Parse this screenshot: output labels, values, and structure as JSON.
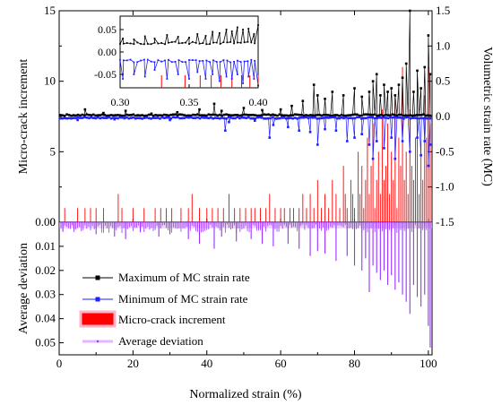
{
  "chart_data": {
    "type": "line",
    "xlabel": "Normalized strain (%)",
    "ylabel_left_top": "Micro-crack increment",
    "ylabel_right_top": "Volumetric strain rate (MC)",
    "ylabel_left_bottom": "Average deviation",
    "x_ticks": [
      "0",
      "20",
      "40",
      "60",
      "80",
      "100"
    ],
    "xlim": [
      0,
      101
    ],
    "top_panel": {
      "left_ylim": [
        0,
        15
      ],
      "left_ticks": [
        "0",
        "5",
        "10",
        "15"
      ],
      "right_ylim": [
        -1.5,
        1.5
      ],
      "right_ticks": [
        "-1.5",
        "-1.0",
        "-0.5",
        "0.0",
        "0.5",
        "1.0",
        "1.5"
      ]
    },
    "bottom_panel": {
      "ylim": [
        0,
        0.055
      ],
      "inverted": true,
      "ticks": [
        "0.00",
        "0.01",
        "0.02",
        "0.03",
        "0.04",
        "0.05"
      ]
    },
    "inset": {
      "xlim": [
        0.3,
        0.4
      ],
      "ylim": [
        -0.08,
        0.08
      ],
      "x_ticks": [
        "0.30",
        "0.35",
        "0.40"
      ],
      "y_ticks": [
        "0.05",
        "0.00",
        "-0.05"
      ]
    },
    "series": [
      {
        "name": "Maximum of MC strain rate",
        "color": "#000000",
        "marker": "square",
        "axis": "right",
        "baseline": 0.02,
        "spikes": [
          [
            7,
            0.1
          ],
          [
            12,
            0.05
          ],
          [
            18,
            0.08
          ],
          [
            25,
            0.04
          ],
          [
            32,
            0.06
          ],
          [
            38,
            0.1
          ],
          [
            42,
            0.18
          ],
          [
            44,
            0.08
          ],
          [
            50,
            0.12
          ],
          [
            55,
            0.09
          ],
          [
            60,
            0.1
          ],
          [
            63,
            0.15
          ],
          [
            66,
            0.22
          ],
          [
            69,
            0.45
          ],
          [
            70,
            0.3
          ],
          [
            72,
            0.25
          ],
          [
            74,
            0.35
          ],
          [
            77,
            0.3
          ],
          [
            80,
            0.4
          ],
          [
            82,
            0.28
          ],
          [
            84,
            0.35
          ],
          [
            85,
            0.5
          ],
          [
            86,
            0.6
          ],
          [
            87,
            0.3
          ],
          [
            88,
            0.45
          ],
          [
            89,
            0.35
          ],
          [
            90,
            0.4
          ],
          [
            91,
            0.3
          ],
          [
            92,
            0.45
          ],
          [
            93,
            0.55
          ],
          [
            94,
            0.75
          ],
          [
            95,
            1.5
          ],
          [
            96,
            0.35
          ],
          [
            97,
            0.65
          ],
          [
            98,
            0.4
          ],
          [
            99,
            0.7
          ],
          [
            100,
            1.15
          ],
          [
            100.5,
            0.6
          ]
        ]
      },
      {
        "name": "Minimum of MC strain rate",
        "color": "#1f1fff",
        "marker": "square",
        "axis": "right",
        "baseline": -0.02,
        "spikes": [
          [
            5,
            -0.05
          ],
          [
            15,
            -0.04
          ],
          [
            30,
            -0.05
          ],
          [
            45,
            -0.2
          ],
          [
            46,
            -0.08
          ],
          [
            53,
            -0.06
          ],
          [
            57,
            -0.3
          ],
          [
            58,
            -0.12
          ],
          [
            62,
            -0.15
          ],
          [
            65,
            -0.2
          ],
          [
            68,
            -0.22
          ],
          [
            70,
            -0.4
          ],
          [
            72,
            -0.18
          ],
          [
            75,
            -0.2
          ],
          [
            78,
            -0.35
          ],
          [
            80,
            -0.3
          ],
          [
            82,
            -0.25
          ],
          [
            84,
            -0.4
          ],
          [
            85,
            -0.6
          ],
          [
            86,
            -0.35
          ],
          [
            88,
            -0.45
          ],
          [
            90,
            -0.3
          ],
          [
            91,
            -0.6
          ],
          [
            93,
            -0.35
          ],
          [
            95,
            -0.5
          ],
          [
            97,
            -0.3
          ],
          [
            98,
            -0.55
          ],
          [
            99,
            -0.35
          ],
          [
            100,
            -0.7
          ],
          [
            100.5,
            -0.4
          ]
        ]
      },
      {
        "name": "Micro-crack increment",
        "color": "#ff0000",
        "type": "bar",
        "axis": "left",
        "bars": [
          [
            1.5,
            1
          ],
          [
            5,
            1
          ],
          [
            7,
            1
          ],
          [
            8.5,
            1
          ],
          [
            10,
            1
          ],
          [
            12,
            1
          ],
          [
            16,
            2
          ],
          [
            17,
            1
          ],
          [
            20,
            1
          ],
          [
            23,
            1
          ],
          [
            26,
            1
          ],
          [
            27.5,
            1
          ],
          [
            29,
            1
          ],
          [
            30.5,
            1
          ],
          [
            33,
            1
          ],
          [
            35,
            1
          ],
          [
            36,
            2
          ],
          [
            38,
            1
          ],
          [
            40,
            1
          ],
          [
            41.5,
            1
          ],
          [
            43,
            1
          ],
          [
            44.5,
            1
          ],
          [
            46,
            2
          ],
          [
            47.5,
            1
          ],
          [
            49,
            1
          ],
          [
            50.5,
            1
          ],
          [
            52,
            1
          ],
          [
            53,
            1
          ],
          [
            54.5,
            1
          ],
          [
            56,
            1
          ],
          [
            57,
            2
          ],
          [
            58.5,
            1
          ],
          [
            60,
            1
          ],
          [
            61,
            1
          ],
          [
            62.5,
            1
          ],
          [
            63.5,
            1
          ],
          [
            65,
            1
          ],
          [
            66,
            2
          ],
          [
            67,
            1
          ],
          [
            68,
            2
          ],
          [
            69,
            1
          ],
          [
            70,
            3
          ],
          [
            71,
            1
          ],
          [
            72,
            2
          ],
          [
            73,
            1
          ],
          [
            74,
            3
          ],
          [
            75,
            2
          ],
          [
            76,
            1
          ],
          [
            77,
            4
          ],
          [
            77.5,
            2
          ],
          [
            78,
            1
          ],
          [
            79,
            3
          ],
          [
            79.5,
            2
          ],
          [
            80,
            1
          ],
          [
            81,
            5
          ],
          [
            81.5,
            2
          ],
          [
            82,
            4
          ],
          [
            82.5,
            1
          ],
          [
            83,
            3
          ],
          [
            83.5,
            6
          ],
          [
            84,
            2
          ],
          [
            84.5,
            4
          ],
          [
            85,
            7
          ],
          [
            85.5,
            1
          ],
          [
            86,
            3
          ],
          [
            86.5,
            5
          ],
          [
            87,
            2
          ],
          [
            87.5,
            8
          ],
          [
            88,
            3
          ],
          [
            88.5,
            4
          ],
          [
            89,
            7
          ],
          [
            89.5,
            2
          ],
          [
            90,
            5
          ],
          [
            90.5,
            3
          ],
          [
            91,
            9
          ],
          [
            91.5,
            1
          ],
          [
            92,
            6
          ],
          [
            92.5,
            4
          ],
          [
            93,
            11
          ],
          [
            93.5,
            3
          ],
          [
            94,
            5
          ],
          [
            94.5,
            2
          ],
          [
            95,
            8
          ],
          [
            95.5,
            4
          ],
          [
            96,
            3
          ],
          [
            96.5,
            6
          ],
          [
            97,
            10
          ],
          [
            97.5,
            2
          ],
          [
            98,
            5
          ],
          [
            98.5,
            3
          ],
          [
            99,
            9
          ],
          [
            99.5,
            6
          ],
          [
            100,
            11
          ],
          [
            100.5,
            7
          ]
        ]
      },
      {
        "name": "Average deviation",
        "color": "#9b30ff",
        "marker": "point",
        "axis": "bottom",
        "typical": 0.0025,
        "spikes": [
          [
            1,
            0.004
          ],
          [
            4,
            0.003
          ],
          [
            10,
            0.005
          ],
          [
            15,
            0.006
          ],
          [
            18,
            0.007
          ],
          [
            22,
            0.004
          ],
          [
            27,
            0.006
          ],
          [
            30,
            0.005
          ],
          [
            35,
            0.007
          ],
          [
            38,
            0.009
          ],
          [
            42,
            0.011
          ],
          [
            44,
            0.006
          ],
          [
            48,
            0.008
          ],
          [
            52,
            0.007
          ],
          [
            55,
            0.009
          ],
          [
            58,
            0.01
          ],
          [
            62,
            0.009
          ],
          [
            65,
            0.011
          ],
          [
            68,
            0.014
          ],
          [
            70,
            0.012
          ],
          [
            72,
            0.013
          ],
          [
            75,
            0.016
          ],
          [
            78,
            0.014
          ],
          [
            80,
            0.018
          ],
          [
            82,
            0.02
          ],
          [
            83,
            0.015
          ],
          [
            84,
            0.029
          ],
          [
            85,
            0.018
          ],
          [
            86,
            0.021
          ],
          [
            87,
            0.024
          ],
          [
            88,
            0.02
          ],
          [
            89,
            0.026
          ],
          [
            90,
            0.022
          ],
          [
            91,
            0.028
          ],
          [
            92,
            0.025
          ],
          [
            93,
            0.03
          ],
          [
            94,
            0.033
          ],
          [
            95,
            0.038
          ],
          [
            96,
            0.026
          ],
          [
            97,
            0.031
          ],
          [
            98,
            0.035
          ],
          [
            99,
            0.03
          ],
          [
            100,
            0.043
          ],
          [
            100.5,
            0.052
          ]
        ]
      }
    ],
    "inset_series": [
      {
        "name": "Maximum of MC strain rate",
        "color": "#000000",
        "baseline": 0.02,
        "spikes": [
          [
            0.302,
            0.03
          ],
          [
            0.31,
            0.028
          ],
          [
            0.318,
            0.035
          ],
          [
            0.325,
            0.03
          ],
          [
            0.334,
            0.038
          ],
          [
            0.342,
            0.034
          ],
          [
            0.35,
            0.032
          ],
          [
            0.356,
            0.04
          ],
          [
            0.362,
            0.036
          ],
          [
            0.367,
            0.045
          ],
          [
            0.372,
            0.042
          ],
          [
            0.377,
            0.05
          ],
          [
            0.381,
            0.046
          ],
          [
            0.385,
            0.055
          ],
          [
            0.389,
            0.05
          ],
          [
            0.393,
            0.052
          ],
          [
            0.397,
            0.04
          ],
          [
            0.4,
            0.06
          ]
        ]
      },
      {
        "name": "Minimum of MC strain rate",
        "color": "#1f1fff",
        "baseline": -0.02,
        "spikes": [
          [
            0.302,
            -0.06
          ],
          [
            0.31,
            -0.05
          ],
          [
            0.318,
            -0.055
          ],
          [
            0.325,
            -0.04
          ],
          [
            0.334,
            -0.06
          ],
          [
            0.342,
            -0.05
          ],
          [
            0.35,
            -0.06
          ],
          [
            0.356,
            -0.045
          ],
          [
            0.362,
            -0.06
          ],
          [
            0.367,
            -0.05
          ],
          [
            0.372,
            -0.065
          ],
          [
            0.377,
            -0.055
          ],
          [
            0.381,
            -0.06
          ],
          [
            0.385,
            -0.05
          ],
          [
            0.389,
            -0.07
          ],
          [
            0.393,
            -0.055
          ],
          [
            0.397,
            -0.06
          ],
          [
            0.4,
            -0.075
          ]
        ]
      },
      {
        "name": "Micro-crack increment",
        "color": "#ff0000",
        "bars": [
          0.33,
          0.347,
          0.358,
          0.366,
          0.373,
          0.381,
          0.388,
          0.394,
          0.4
        ]
      }
    ]
  }
}
